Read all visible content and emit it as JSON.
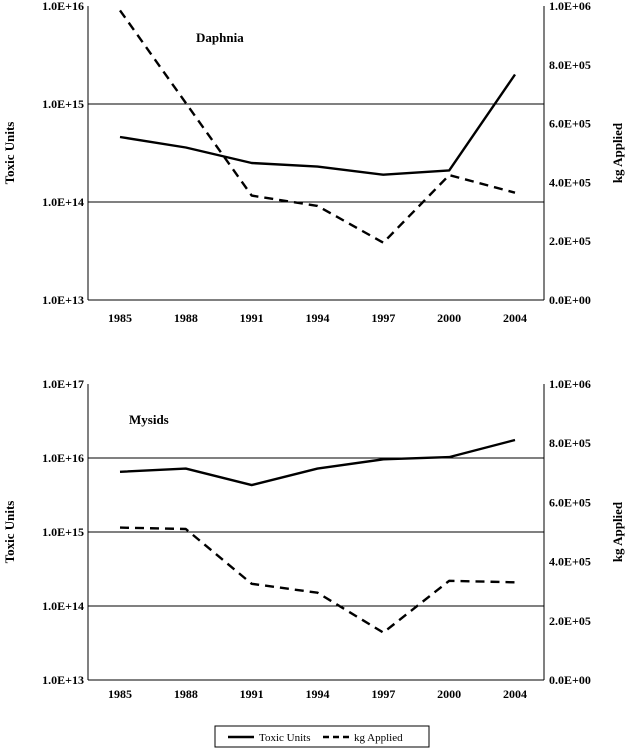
{
  "chart_data": [
    {
      "type": "line",
      "label": "Daphnia",
      "categories": [
        "1985",
        "1988",
        "1991",
        "1994",
        "1997",
        "2000",
        "2004"
      ],
      "ylabel_left": "Toxic Units",
      "ylabel_right": "kg Applied",
      "left_axis": {
        "scale": "log",
        "ylim": [
          10000000000000.0,
          1e+16
        ],
        "ticks": [
          "1.0E+13",
          "1.0E+14",
          "1.0E+15",
          "1.0E+16"
        ],
        "tick_values": [
          10000000000000.0,
          100000000000000.0,
          1000000000000000.0,
          1e+16
        ]
      },
      "right_axis": {
        "scale": "linear",
        "ylim": [
          0,
          1000000
        ],
        "ticks": [
          "0.0E+00",
          "2.0E+05",
          "4.0E+05",
          "6.0E+05",
          "8.0E+05",
          "1.0E+06"
        ],
        "tick_values": [
          0,
          200000,
          400000,
          600000,
          800000,
          1000000
        ]
      },
      "gridlines": [
        100000000000000.0,
        1000000000000000.0
      ],
      "series": [
        {
          "name": "Toxic Units",
          "axis": "left",
          "style": "solid",
          "values": [
            460000000000000.0,
            360000000000000.0,
            250000000000000.0,
            230000000000000.0,
            190000000000000.0,
            210000000000000.0,
            2000000000000000.0
          ]
        },
        {
          "name": "kg Applied",
          "axis": "right",
          "style": "dashed",
          "values": [
            985000,
            670000,
            355000,
            320000,
            195000,
            425000,
            365000
          ]
        }
      ]
    },
    {
      "type": "line",
      "label": "Mysids",
      "categories": [
        "1985",
        "1988",
        "1991",
        "1994",
        "1997",
        "2000",
        "2004"
      ],
      "ylabel_left": "Toxic Units",
      "ylabel_right": "kg Applied",
      "left_axis": {
        "scale": "log",
        "ylim": [
          10000000000000.0,
          1e+17
        ],
        "ticks": [
          "1.0E+13",
          "1.0E+14",
          "1.0E+15",
          "1.0E+16",
          "1.0E+17"
        ],
        "tick_values": [
          10000000000000.0,
          100000000000000.0,
          1000000000000000.0,
          1e+16,
          1e+17
        ]
      },
      "right_axis": {
        "scale": "linear",
        "ylim": [
          0,
          1000000
        ],
        "ticks": [
          "0.0E+00",
          "2.0E+05",
          "4.0E+05",
          "6.0E+05",
          "8.0E+05",
          "1.0E+06"
        ],
        "tick_values": [
          0,
          200000,
          400000,
          600000,
          800000,
          1000000
        ]
      },
      "gridlines": [
        100000000000000.0,
        1000000000000000.0,
        1e+16
      ],
      "series": [
        {
          "name": "Toxic Units",
          "axis": "left",
          "style": "solid",
          "values": [
            6500000000000000.0,
            7200000000000000.0,
            4300000000000000.0,
            7200000000000000.0,
            9600000000000000.0,
            1.03e+16,
            1.75e+16
          ]
        },
        {
          "name": "kg Applied",
          "axis": "right",
          "style": "dashed",
          "values": [
            515000,
            510000,
            325000,
            295000,
            160000,
            335000,
            330000
          ]
        }
      ]
    }
  ],
  "legend": [
    {
      "name": "Toxic Units",
      "style": "solid"
    },
    {
      "name": "kg  Applied",
      "style": "dashed"
    }
  ]
}
